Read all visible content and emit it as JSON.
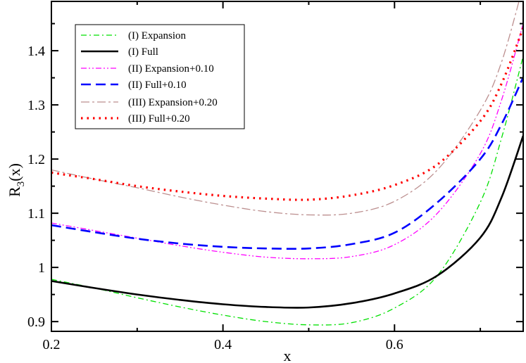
{
  "chart_data": {
    "type": "line",
    "xlabel": "x",
    "ylabel_main": "R",
    "ylabel_sub": "3",
    "ylabel_tail": "(x)",
    "xlim": [
      0.2,
      0.75
    ],
    "ylim": [
      0.882,
      1.491
    ],
    "xticks": [
      0.2,
      0.4,
      0.6
    ],
    "xtick_labels": [
      "0.2",
      "0.4",
      "0.6"
    ],
    "yticks": [
      0.9,
      1.0,
      1.1,
      1.2,
      1.3,
      1.4
    ],
    "ytick_labels": [
      "0.9",
      "1",
      "1.1",
      "1.2",
      "1.3",
      "1.4"
    ],
    "grid": false,
    "legend_position": "top-left",
    "x": [
      0.2,
      0.25,
      0.3,
      0.35,
      0.4,
      0.45,
      0.5,
      0.55,
      0.6,
      0.65,
      0.7,
      0.725,
      0.75
    ],
    "series": [
      {
        "name": "(I) Expansion",
        "color": "#00e000",
        "dash": "dashdot",
        "width": 1.3,
        "values": [
          0.978,
          0.962,
          0.944,
          0.927,
          0.912,
          0.9,
          0.894,
          0.898,
          0.925,
          0.985,
          1.12,
          1.24,
          1.39
        ]
      },
      {
        "name": "(I) Full",
        "color": "#000000",
        "dash": "solid",
        "width": 2.6,
        "values": [
          0.975,
          0.962,
          0.95,
          0.94,
          0.932,
          0.927,
          0.926,
          0.934,
          0.952,
          0.985,
          1.055,
          1.13,
          1.243
        ]
      },
      {
        "name": "(II) Expansion+0.10",
        "color": "#ff00ff",
        "dash": "dashdotdot",
        "width": 1.3,
        "values": [
          1.082,
          1.068,
          1.054,
          1.04,
          1.028,
          1.019,
          1.016,
          1.02,
          1.042,
          1.1,
          1.21,
          1.31,
          1.45
        ]
      },
      {
        "name": "(II) Full+0.10",
        "color": "#0000ff",
        "dash": "dashed",
        "width": 2.6,
        "values": [
          1.078,
          1.065,
          1.053,
          1.044,
          1.038,
          1.035,
          1.035,
          1.043,
          1.064,
          1.12,
          1.2,
          1.265,
          1.351
        ]
      },
      {
        "name": "(III) Expansion+0.20",
        "color": "#bc8f8f",
        "dash": "longdashdot",
        "width": 1.3,
        "values": [
          1.18,
          1.163,
          1.147,
          1.13,
          1.115,
          1.103,
          1.097,
          1.1,
          1.122,
          1.18,
          1.29,
          1.38,
          1.52
        ]
      },
      {
        "name": "(III) Full+0.20",
        "color": "#ff0000",
        "dash": "dotted",
        "width": 3.2,
        "values": [
          1.175,
          1.163,
          1.15,
          1.14,
          1.132,
          1.127,
          1.125,
          1.133,
          1.152,
          1.19,
          1.27,
          1.34,
          1.442
        ]
      }
    ]
  }
}
